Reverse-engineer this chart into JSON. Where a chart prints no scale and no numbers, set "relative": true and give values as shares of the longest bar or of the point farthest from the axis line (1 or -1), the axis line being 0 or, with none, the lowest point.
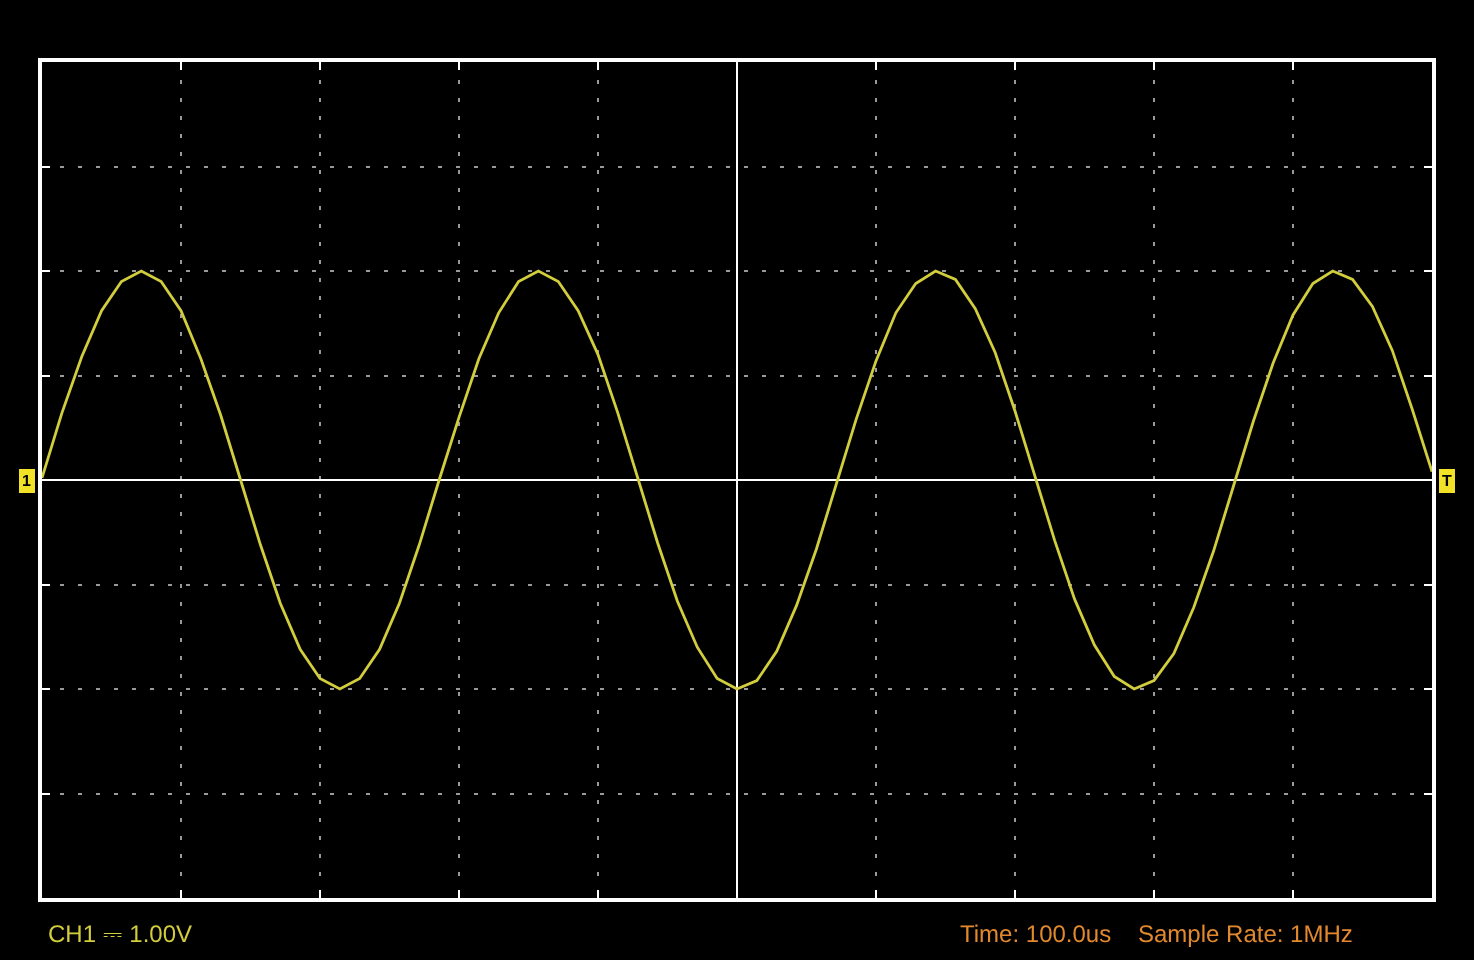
{
  "chart_data": {
    "type": "line",
    "relative": true,
    "grid": true,
    "categories": [
      null,
      null,
      null,
      null,
      null,
      null,
      null,
      null,
      null,
      null,
      null,
      null,
      null,
      null,
      null,
      null,
      null,
      null,
      null,
      null,
      null,
      null,
      null,
      null,
      null,
      null,
      null,
      null,
      null,
      null,
      null,
      null,
      null,
      null,
      null,
      null,
      null,
      null,
      null,
      null,
      null,
      null,
      null,
      null,
      null,
      null,
      null,
      null,
      null,
      null,
      null,
      null,
      null,
      null,
      null,
      null,
      null,
      null,
      null,
      null,
      null,
      null,
      null,
      null,
      null,
      null,
      null,
      null,
      null,
      null,
      null
    ],
    "series": [
      {
        "color": "#d2cd3c",
        "values": [
          0.01,
          0.32,
          0.59,
          0.81,
          0.95,
          1.0,
          0.95,
          0.81,
          0.58,
          0.31,
          0.0,
          -0.31,
          -0.59,
          -0.81,
          -0.95,
          -1.0,
          -0.95,
          -0.81,
          -0.59,
          -0.31,
          0.0,
          0.3,
          0.58,
          0.8,
          0.95,
          1.0,
          0.95,
          0.81,
          0.6,
          0.32,
          0.01,
          -0.3,
          -0.58,
          -0.8,
          -0.95,
          -1.0,
          -0.96,
          -0.82,
          -0.6,
          -0.33,
          -0.02,
          0.29,
          0.57,
          0.8,
          0.94,
          1.0,
          0.96,
          0.82,
          0.61,
          0.33,
          0.02,
          -0.29,
          -0.57,
          -0.79,
          -0.94,
          -1.0,
          -0.96,
          -0.83,
          -0.61,
          -0.34,
          -0.03,
          0.28,
          0.56,
          0.79,
          0.94,
          1.0,
          0.96,
          0.83,
          0.62,
          0.34,
          0.04
        ]
      }
    ],
    "annotations": [
      "CH1 ⎓ 1.00V",
      "Time: 100.0us",
      "Sample Rate: 1MHz",
      "1",
      "T"
    ]
  }
}
